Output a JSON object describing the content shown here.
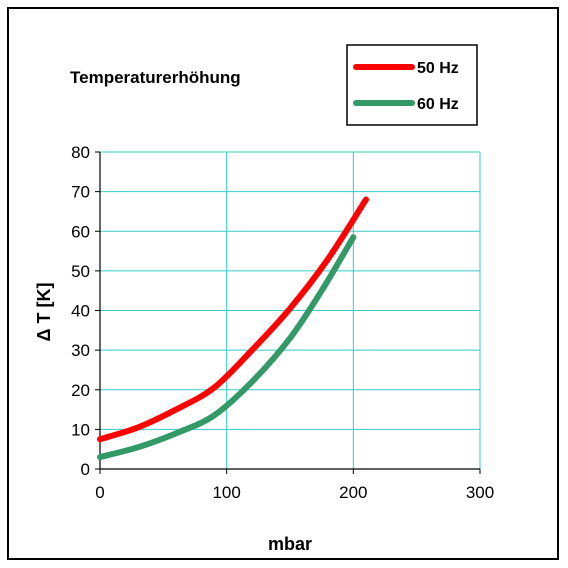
{
  "chart_data": {
    "type": "line",
    "title": "Temperaturerhöhung",
    "xlabel": "mbar",
    "ylabel": "Δ T [K]",
    "xlim": [
      0,
      300
    ],
    "ylim": [
      0,
      80
    ],
    "x_ticks": [
      "0",
      "100",
      "200",
      "300"
    ],
    "y_ticks": [
      "0",
      "10",
      "20",
      "30",
      "40",
      "50",
      "60",
      "70",
      "80"
    ],
    "grid": true,
    "legend_position": "top-right",
    "series": [
      {
        "name": "50 Hz",
        "color": "#ff0000",
        "x": [
          0,
          30,
          60,
          90,
          120,
          150,
          180,
          210
        ],
        "y": [
          7.5,
          10.5,
          15,
          20.5,
          30,
          40.5,
          53,
          68
        ]
      },
      {
        "name": "60 Hz",
        "color": "#339966",
        "x": [
          0,
          30,
          60,
          90,
          120,
          150,
          175,
          200
        ],
        "y": [
          3,
          5.5,
          9,
          13.5,
          22,
          33,
          45,
          58.5
        ]
      }
    ]
  }
}
